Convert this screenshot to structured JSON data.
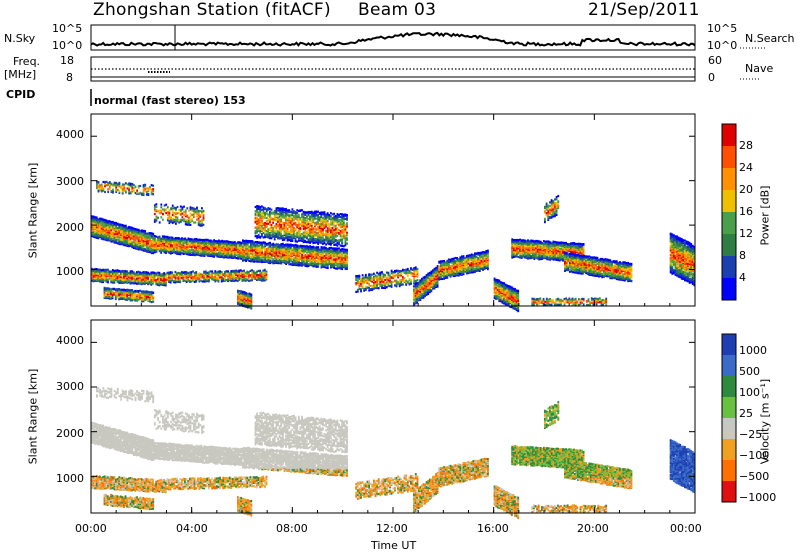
{
  "header": {
    "station_title": "Zhongshan Station (fitACF)",
    "beam": "Beam 03",
    "date": "21/Sep/2011"
  },
  "param_panels": {
    "nsky_label": "N.Sky",
    "nsky_ticks": [
      "10^5",
      "10^0"
    ],
    "nsearch_label": "N.Search",
    "nsearch_ticks": [
      "10^5",
      "10^0"
    ],
    "freq_label": "Freq.",
    "freq_unit": "[MHz]",
    "freq_ticks": [
      "18",
      "8"
    ],
    "nave_label": "Nave",
    "nave_ticks": [
      "60",
      "0"
    ],
    "cpid_label": "CPID",
    "cpid_value": "normal (fast stereo) 153"
  },
  "chart_data": [
    {
      "type": "heatmap",
      "name": "power-panel",
      "ylabel": "Slant Range [km]",
      "y_ticks": [
        "4000",
        "3000",
        "2000",
        "1000"
      ],
      "ylim": [
        180,
        4500
      ],
      "xlim_hours": [
        0,
        24
      ],
      "colorbar": {
        "label": "Power [dB]",
        "ticks": [
          "28",
          "24",
          "20",
          "16",
          "12",
          "8",
          "4"
        ],
        "range": [
          0,
          30
        ],
        "colors": [
          "#0000ff",
          "#1a3fb0",
          "#2f7f45",
          "#4aa04a",
          "#f0c000",
          "#ff9000",
          "#ff5000",
          "#e00000"
        ]
      }
    },
    {
      "type": "heatmap",
      "name": "velocity-panel",
      "ylabel": "Slant Range [km]",
      "y_ticks": [
        "4000",
        "3000",
        "2000",
        "1000"
      ],
      "ylim": [
        180,
        4500
      ],
      "xlim_hours": [
        0,
        24
      ],
      "colorbar": {
        "label": "Velocity [m s⁻¹]",
        "ticks": [
          "1000",
          "500",
          "100",
          "25",
          "−25",
          "−100",
          "−500",
          "−1000"
        ],
        "colors": [
          "#1e3fb4",
          "#3a6cc8",
          "#2e8b3e",
          "#6ac040",
          "#c8c8c0",
          "#f0a020",
          "#ff7000",
          "#e01010"
        ]
      }
    }
  ],
  "x_axis": {
    "ticks": [
      "00:00",
      "04:00",
      "08:00",
      "12:00",
      "16:00",
      "20:00",
      "00:00"
    ],
    "label": "Time UT"
  }
}
